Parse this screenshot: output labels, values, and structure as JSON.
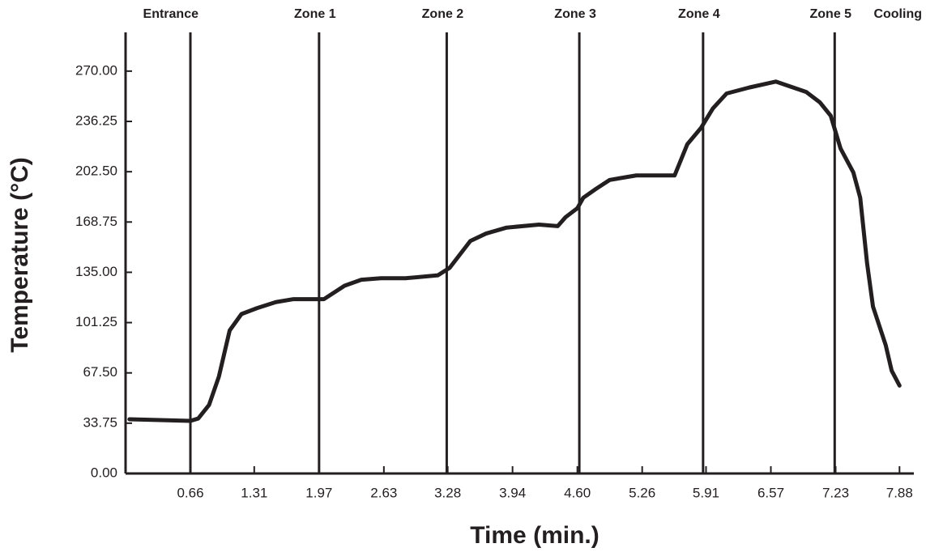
{
  "chart_data": {
    "type": "line",
    "x_label": "Time (min.)",
    "y_label": "Temperature (°C)",
    "x": [
      0.04,
      0.66,
      0.74,
      0.85,
      0.95,
      1.06,
      1.18,
      1.34,
      1.53,
      1.71,
      2.02,
      2.23,
      2.4,
      2.6,
      2.85,
      3.18,
      3.3,
      3.51,
      3.67,
      3.88,
      4.21,
      4.4,
      4.48,
      4.6,
      4.66,
      4.79,
      4.93,
      5.2,
      5.59,
      5.72,
      5.86,
      5.98,
      6.12,
      6.35,
      6.62,
      6.93,
      7.07,
      7.18,
      7.28,
      7.41,
      7.48,
      7.55,
      7.61,
      7.74,
      7.8,
      7.88
    ],
    "series": [
      {
        "color": "#231f20",
        "values": [
          36.4,
          35.3,
          36.9,
          46,
          65,
          96,
          107,
          111,
          115,
          117,
          117,
          126,
          130,
          131,
          131,
          133,
          138,
          156,
          161,
          165,
          167,
          166,
          172,
          178,
          185,
          191,
          197,
          200,
          200,
          221,
          232,
          245,
          255,
          259,
          263,
          256,
          249,
          240,
          218,
          202,
          185,
          141,
          112,
          86,
          69,
          59
        ]
      }
    ],
    "zones": [
      "Entrance",
      "Zone 1",
      "Zone 2",
      "Zone 3",
      "Zone 4",
      "Zone 5",
      "Cooling"
    ],
    "zone_boundaries": [
      0.66,
      1.97,
      3.27,
      4.62,
      5.88,
      7.22
    ],
    "xlim": [
      0,
      7.96
    ],
    "ylim": [
      0,
      296
    ],
    "xticks": [
      0.66,
      1.31,
      1.97,
      2.63,
      3.28,
      3.94,
      {
        "value": 4.6,
        "label": "4.60"
      },
      5.26,
      5.91,
      6.57,
      7.23,
      7.88
    ],
    "yticks": [
      {
        "value": 0,
        "label": "0.00"
      },
      33.75,
      {
        "value": 67.5,
        "label": "67.50"
      },
      101.25,
      {
        "value": 135,
        "label": "135.00"
      },
      168.75,
      {
        "value": 202.5,
        "label": "202.50"
      },
      236.25,
      {
        "value": 270,
        "label": "270.00"
      }
    ]
  }
}
